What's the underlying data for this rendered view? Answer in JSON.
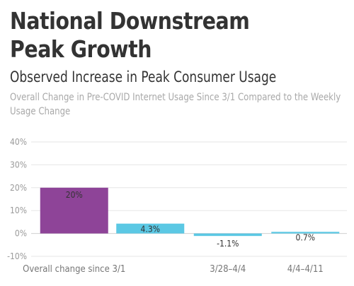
{
  "header": {
    "title": "National Downstream Peak Growth",
    "subtitle": "Observed Increase in Peak Consumer Usage",
    "description": "Overall Change in Pre-COVID Internet Usage Since 3/1 Compared to the Weekly Usage Change"
  },
  "chart_data": {
    "type": "bar",
    "categories": [
      "Overall change since 3/1",
      "",
      "3/28–4/4",
      "4/4–4/11"
    ],
    "values": [
      20,
      4.3,
      -1.1,
      0.7
    ],
    "data_labels": [
      "20%",
      "4.3%",
      "-1.1%",
      "0.7%"
    ],
    "bar_colors": [
      "#8e4498",
      "#5bc8e4",
      "#5bc8e4",
      "#5bc8e4"
    ],
    "ylim": [
      -10,
      40
    ],
    "yticks": [
      -10,
      0,
      10,
      20,
      30,
      40
    ],
    "ytick_labels": [
      "-10%",
      "0%",
      "10%",
      "20%",
      "30%",
      "40%"
    ],
    "grid": true,
    "title": "",
    "xlabel": "",
    "ylabel": ""
  }
}
